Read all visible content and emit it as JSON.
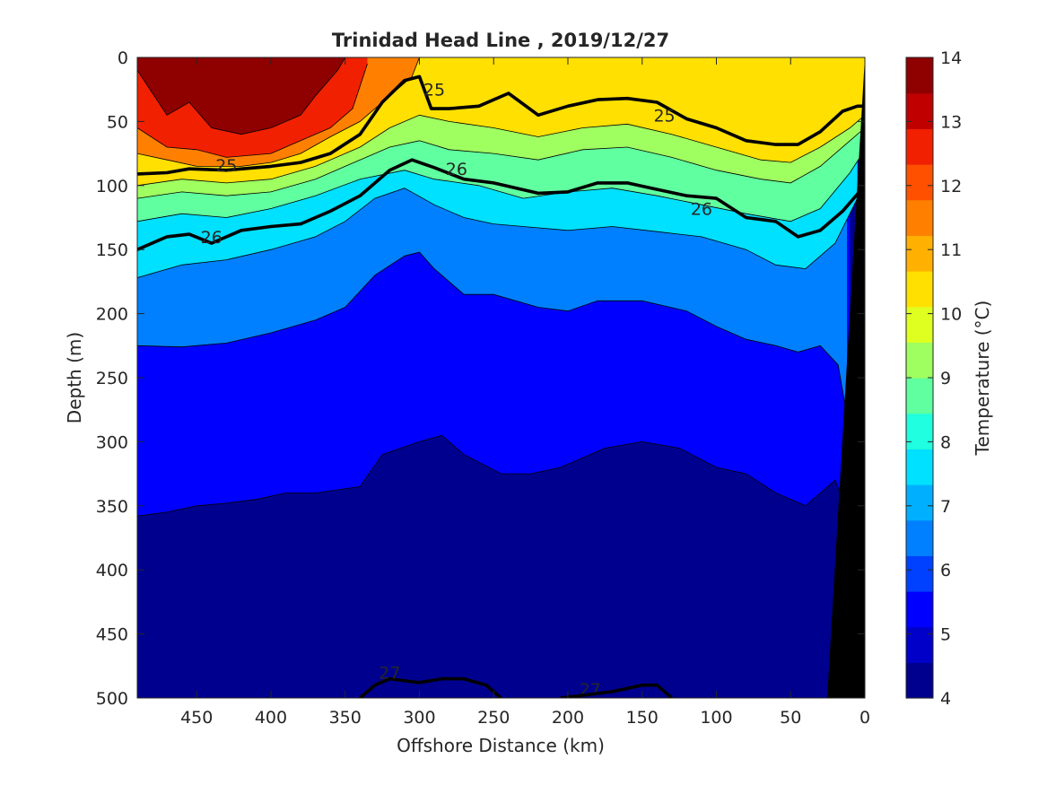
{
  "chart_data": {
    "type": "heatmap",
    "title": "Trinidad Head Line , 2019/12/27",
    "xlabel": "Offshore Distance (km)",
    "ylabel": "Depth (m)",
    "colorbar_label": "Temperature (°C)",
    "xlim": [
      490,
      0
    ],
    "ylim": [
      0,
      500
    ],
    "x_ticks": [
      450,
      400,
      350,
      300,
      250,
      200,
      150,
      100,
      50,
      0
    ],
    "y_ticks": [
      0,
      50,
      100,
      150,
      200,
      250,
      300,
      350,
      400,
      450,
      500
    ],
    "colorbar_ticks": [
      4,
      5,
      6,
      7,
      8,
      9,
      10,
      11,
      12,
      13,
      14
    ],
    "colorbar_range": [
      4,
      14
    ],
    "colormap": [
      "#00008F",
      "#0000C8",
      "#0000FF",
      "#0040FF",
      "#0080FF",
      "#00B0FF",
      "#00E0FF",
      "#20FFDF",
      "#60FF9F",
      "#9FFF60",
      "#DFFF20",
      "#FFE000",
      "#FFB000",
      "#FF8000",
      "#FF5000",
      "#F02000",
      "#C00000",
      "#8F0000"
    ],
    "temperature_isotherms": [
      {
        "temperature": 13,
        "points": [
          [
            490,
            10
          ],
          [
            470,
            45
          ],
          [
            455,
            35
          ],
          [
            440,
            55
          ],
          [
            420,
            60
          ],
          [
            400,
            55
          ],
          [
            380,
            45
          ],
          [
            370,
            30
          ],
          [
            355,
            10
          ],
          [
            350,
            0
          ]
        ]
      },
      {
        "temperature": 12,
        "points": [
          [
            490,
            55
          ],
          [
            470,
            70
          ],
          [
            450,
            72
          ],
          [
            430,
            78
          ],
          [
            400,
            75
          ],
          [
            380,
            65
          ],
          [
            360,
            55
          ],
          [
            345,
            40
          ],
          [
            335,
            5
          ]
        ]
      },
      {
        "temperature": 11,
        "points": [
          [
            490,
            75
          ],
          [
            470,
            80
          ],
          [
            450,
            85
          ],
          [
            420,
            85
          ],
          [
            400,
            82
          ],
          [
            380,
            75
          ],
          [
            360,
            62
          ],
          [
            340,
            50
          ],
          [
            320,
            30
          ],
          [
            305,
            15
          ],
          [
            300,
            0
          ]
        ]
      },
      {
        "temperature": 10,
        "points": [
          [
            490,
            100
          ],
          [
            460,
            95
          ],
          [
            430,
            98
          ],
          [
            400,
            95
          ],
          [
            370,
            85
          ],
          [
            340,
            70
          ],
          [
            320,
            55
          ],
          [
            300,
            45
          ],
          [
            280,
            50
          ],
          [
            250,
            55
          ],
          [
            220,
            62
          ],
          [
            190,
            55
          ],
          [
            160,
            52
          ],
          [
            130,
            60
          ],
          [
            100,
            70
          ],
          [
            70,
            80
          ],
          [
            50,
            82
          ],
          [
            30,
            70
          ],
          [
            10,
            55
          ],
          [
            0,
            45
          ]
        ]
      },
      {
        "temperature": 9,
        "points": [
          [
            490,
            110
          ],
          [
            460,
            105
          ],
          [
            430,
            108
          ],
          [
            400,
            105
          ],
          [
            370,
            95
          ],
          [
            340,
            80
          ],
          [
            320,
            70
          ],
          [
            300,
            65
          ],
          [
            280,
            72
          ],
          [
            250,
            75
          ],
          [
            220,
            80
          ],
          [
            190,
            72
          ],
          [
            160,
            70
          ],
          [
            130,
            78
          ],
          [
            100,
            88
          ],
          [
            70,
            95
          ],
          [
            50,
            98
          ],
          [
            30,
            85
          ],
          [
            10,
            65
          ],
          [
            0,
            55
          ]
        ]
      },
      {
        "temperature": 8,
        "points": [
          [
            490,
            128
          ],
          [
            460,
            122
          ],
          [
            430,
            125
          ],
          [
            400,
            118
          ],
          [
            370,
            108
          ],
          [
            340,
            95
          ],
          [
            310,
            88
          ],
          [
            290,
            95
          ],
          [
            260,
            100
          ],
          [
            230,
            110
          ],
          [
            200,
            105
          ],
          [
            170,
            102
          ],
          [
            140,
            108
          ],
          [
            110,
            115
          ],
          [
            80,
            122
          ],
          [
            50,
            128
          ],
          [
            30,
            118
          ],
          [
            10,
            90
          ],
          [
            0,
            72
          ]
        ]
      },
      {
        "temperature": 7,
        "points": [
          [
            490,
            172
          ],
          [
            460,
            162
          ],
          [
            430,
            158
          ],
          [
            400,
            150
          ],
          [
            370,
            140
          ],
          [
            350,
            128
          ],
          [
            330,
            110
          ],
          [
            310,
            102
          ],
          [
            290,
            115
          ],
          [
            270,
            125
          ],
          [
            250,
            130
          ],
          [
            230,
            132
          ],
          [
            200,
            135
          ],
          [
            170,
            132
          ],
          [
            140,
            136
          ],
          [
            110,
            140
          ],
          [
            80,
            150
          ],
          [
            60,
            162
          ],
          [
            40,
            165
          ],
          [
            20,
            145
          ],
          [
            5,
            110
          ]
        ]
      },
      {
        "temperature": 6,
        "points": [
          [
            490,
            225
          ],
          [
            460,
            226
          ],
          [
            430,
            223
          ],
          [
            400,
            215
          ],
          [
            370,
            205
          ],
          [
            350,
            195
          ],
          [
            330,
            170
          ],
          [
            310,
            155
          ],
          [
            300,
            152
          ],
          [
            290,
            165
          ],
          [
            270,
            185
          ],
          [
            250,
            185
          ],
          [
            220,
            195
          ],
          [
            200,
            198
          ],
          [
            180,
            190
          ],
          [
            150,
            190
          ],
          [
            120,
            198
          ],
          [
            100,
            210
          ],
          [
            80,
            220
          ],
          [
            60,
            225
          ],
          [
            45,
            230
          ],
          [
            30,
            225
          ],
          [
            18,
            240
          ],
          [
            12,
            280
          ]
        ]
      },
      {
        "temperature": 5,
        "points": [
          [
            490,
            358
          ],
          [
            470,
            355
          ],
          [
            450,
            350
          ],
          [
            430,
            348
          ],
          [
            410,
            345
          ],
          [
            390,
            340
          ],
          [
            370,
            340
          ],
          [
            340,
            335
          ],
          [
            325,
            310
          ],
          [
            300,
            300
          ],
          [
            285,
            295
          ],
          [
            270,
            310
          ],
          [
            245,
            325
          ],
          [
            225,
            325
          ],
          [
            205,
            320
          ],
          [
            175,
            305
          ],
          [
            150,
            300
          ],
          [
            125,
            305
          ],
          [
            100,
            320
          ],
          [
            80,
            325
          ],
          [
            60,
            340
          ],
          [
            40,
            350
          ],
          [
            20,
            330
          ],
          [
            10,
            360
          ]
        ]
      }
    ],
    "density_contours": [
      {
        "label": "25",
        "label_positions": [
          [
            430,
            84
          ],
          [
            290,
            25
          ],
          [
            135,
            45
          ]
        ],
        "points": [
          [
            490,
            91
          ],
          [
            470,
            90
          ],
          [
            455,
            87
          ],
          [
            430,
            88
          ],
          [
            400,
            85
          ],
          [
            380,
            82
          ],
          [
            360,
            75
          ],
          [
            340,
            60
          ],
          [
            325,
            35
          ],
          [
            310,
            18
          ],
          [
            300,
            15
          ],
          [
            292,
            40
          ],
          [
            280,
            40
          ],
          [
            260,
            38
          ],
          [
            240,
            28
          ],
          [
            220,
            45
          ],
          [
            200,
            38
          ],
          [
            180,
            33
          ],
          [
            160,
            32
          ],
          [
            140,
            35
          ],
          [
            120,
            48
          ],
          [
            100,
            55
          ],
          [
            80,
            65
          ],
          [
            60,
            68
          ],
          [
            45,
            68
          ],
          [
            30,
            58
          ],
          [
            15,
            42
          ],
          [
            5,
            38
          ],
          [
            0,
            38
          ]
        ]
      },
      {
        "label": "26",
        "label_positions": [
          [
            275,
            87
          ],
          [
            110,
            118
          ],
          [
            440,
            140
          ]
        ],
        "points": [
          [
            490,
            150
          ],
          [
            470,
            140
          ],
          [
            455,
            138
          ],
          [
            440,
            145
          ],
          [
            420,
            135
          ],
          [
            400,
            132
          ],
          [
            380,
            130
          ],
          [
            360,
            120
          ],
          [
            340,
            108
          ],
          [
            320,
            88
          ],
          [
            305,
            80
          ],
          [
            290,
            86
          ],
          [
            270,
            95
          ],
          [
            250,
            98
          ],
          [
            220,
            106
          ],
          [
            200,
            105
          ],
          [
            180,
            98
          ],
          [
            160,
            98
          ],
          [
            140,
            103
          ],
          [
            120,
            108
          ],
          [
            100,
            110
          ],
          [
            80,
            125
          ],
          [
            60,
            128
          ],
          [
            45,
            140
          ],
          [
            30,
            135
          ],
          [
            15,
            120
          ],
          [
            0,
            100
          ]
        ]
      },
      {
        "label": "27",
        "label_positions": [
          [
            320,
            480
          ],
          [
            185,
            493
          ]
        ],
        "points": [
          [
            340,
            500
          ],
          [
            330,
            490
          ],
          [
            320,
            485
          ],
          [
            300,
            488
          ],
          [
            285,
            485
          ],
          [
            270,
            485
          ],
          [
            255,
            490
          ],
          [
            245,
            500
          ]
        ]
      },
      {
        "label": "27",
        "label_positions": [],
        "points": [
          [
            205,
            500
          ],
          [
            190,
            498
          ],
          [
            170,
            495
          ],
          [
            150,
            490
          ],
          [
            140,
            490
          ],
          [
            130,
            500
          ]
        ]
      }
    ]
  }
}
